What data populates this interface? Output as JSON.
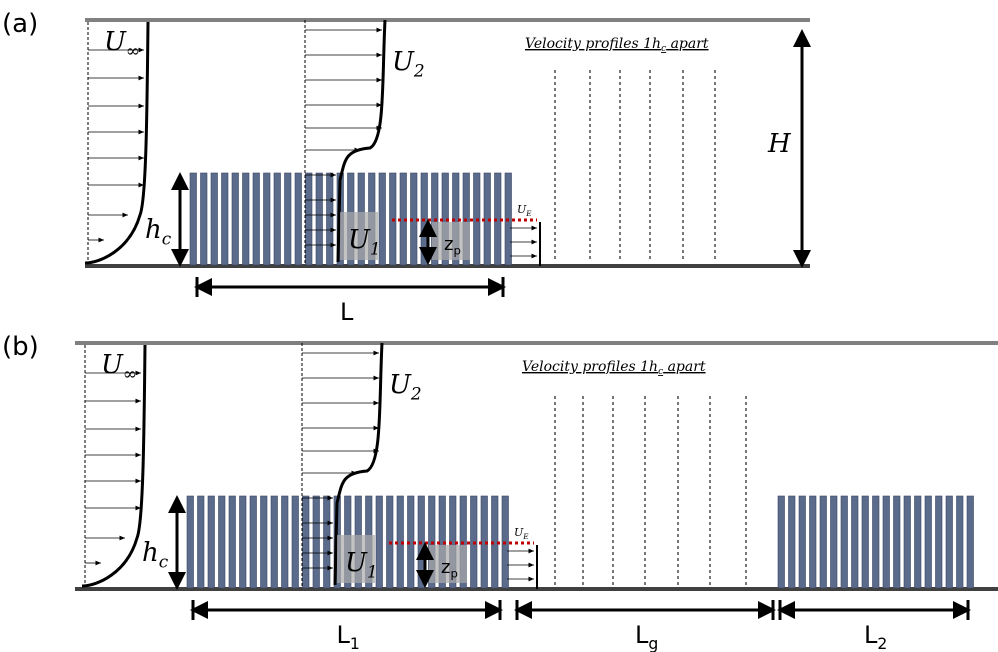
{
  "panels": [
    {
      "label": "(a)",
      "u_inf": {
        "base": "U",
        "sub": "∞"
      },
      "u2": {
        "base": "U",
        "sub": "2"
      },
      "u1": {
        "base": "U",
        "sub": "1"
      },
      "ue": {
        "base": "U",
        "sub": "E"
      },
      "hc": {
        "base": "h",
        "sub": "c"
      },
      "zp": {
        "base": "z",
        "sub": "p"
      },
      "note": {
        "pre": "Velocity profiles 1",
        "h": "h",
        "c": "c",
        "post": " apart"
      },
      "height": "H",
      "lengths": [
        {
          "base": "L"
        }
      ]
    },
    {
      "label": "(b)",
      "u_inf": {
        "base": "U",
        "sub": "∞"
      },
      "u2": {
        "base": "U",
        "sub": "2"
      },
      "u1": {
        "base": "U",
        "sub": "1"
      },
      "ue": {
        "base": "U",
        "sub": "E"
      },
      "hc": {
        "base": "h",
        "sub": "c"
      },
      "zp": {
        "base": "z",
        "sub": "p"
      },
      "note": {
        "pre": "Velocity profiles 1",
        "h": "h",
        "c": "c",
        "post": " apart"
      },
      "lengths": [
        {
          "base": "L",
          "sub": "1"
        },
        {
          "base": "L",
          "sub": "g"
        },
        {
          "base": "L",
          "sub": "2"
        }
      ]
    }
  ]
}
